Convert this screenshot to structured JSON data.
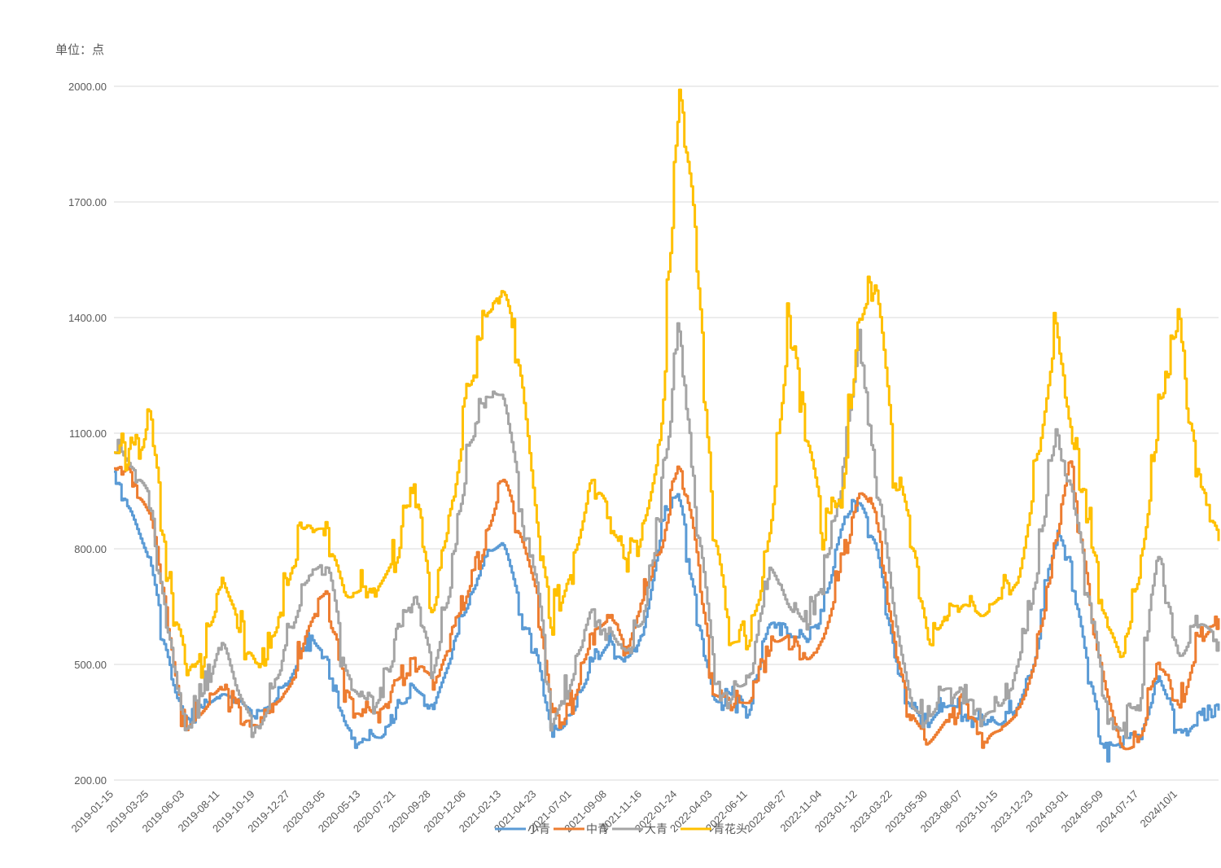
{
  "chart_data": {
    "type": "line",
    "unit_label": "单位：点",
    "ylim": [
      200,
      2100
    ],
    "y_ticks": [
      "200.00",
      "500.00",
      "800.00",
      "1100.00",
      "1400.00",
      "1700.00",
      "2000.00"
    ],
    "x_tick_labels": [
      "2019-01-15",
      "2019-03-25",
      "2019-06-03",
      "2019-08-11",
      "2019-10-19",
      "2019-12-27",
      "2020-03-05",
      "2020-05-13",
      "2020-07-21",
      "2020-09-28",
      "2020-12-06",
      "2021-02-13",
      "2021-04-23",
      "2021-07-01",
      "2021-09-08",
      "2021-11-16",
      "2022-01-24",
      "2022-04-03",
      "2022-06-11",
      "2022-08-27",
      "2022-11-04",
      "2023-01-12",
      "2023-03-22",
      "2023-05-30",
      "2023-08-07",
      "2023-10-15",
      "2023-12-23",
      "2024-03-01",
      "2024-05-09",
      "2024-07-17",
      "2024/10/1"
    ],
    "x_range": [
      "2019-01-15",
      "2024-12-20"
    ],
    "grid": "horizontal",
    "legend": "bottom",
    "colors": {
      "小青": "#5b9bd5",
      "中青": "#ed7d31",
      "大青": "#a5a5a5",
      "青花头": "#ffc000"
    },
    "series": [
      {
        "name": "小青",
        "color": "#5b9bd5",
        "points": [
          [
            "2019-01-15",
            1000
          ],
          [
            "2019-02-10",
            910
          ],
          [
            "2019-03-05",
            820
          ],
          [
            "2019-03-25",
            750
          ],
          [
            "2019-04-20",
            560
          ],
          [
            "2019-05-15",
            400
          ],
          [
            "2019-06-03",
            350
          ],
          [
            "2019-07-05",
            380
          ],
          [
            "2019-08-11",
            430
          ],
          [
            "2019-09-10",
            400
          ],
          [
            "2019-10-19",
            370
          ],
          [
            "2019-11-20",
            400
          ],
          [
            "2019-12-27",
            480
          ],
          [
            "2020-01-25",
            560
          ],
          [
            "2020-03-05",
            520
          ],
          [
            "2020-04-10",
            330
          ],
          [
            "2020-05-13",
            300
          ],
          [
            "2020-06-20",
            310
          ],
          [
            "2020-07-21",
            380
          ],
          [
            "2020-08-25",
            430
          ],
          [
            "2020-09-28",
            400
          ],
          [
            "2020-11-01",
            520
          ],
          [
            "2020-12-06",
            660
          ],
          [
            "2021-01-10",
            780
          ],
          [
            "2021-02-13",
            820
          ],
          [
            "2021-03-15",
            660
          ],
          [
            "2021-04-23",
            500
          ],
          [
            "2021-05-20",
            300
          ],
          [
            "2021-07-01",
            380
          ],
          [
            "2021-08-05",
            500
          ],
          [
            "2021-09-08",
            560
          ],
          [
            "2021-10-10",
            500
          ],
          [
            "2021-11-16",
            600
          ],
          [
            "2021-12-20",
            860
          ],
          [
            "2022-01-24",
            950
          ],
          [
            "2022-02-20",
            700
          ],
          [
            "2022-04-03",
            390
          ],
          [
            "2022-05-05",
            420
          ],
          [
            "2022-06-11",
            380
          ],
          [
            "2022-07-20",
            620
          ],
          [
            "2022-08-27",
            580
          ],
          [
            "2022-10-01",
            560
          ],
          [
            "2022-11-04",
            640
          ],
          [
            "2022-12-10",
            880
          ],
          [
            "2023-01-12",
            930
          ],
          [
            "2023-02-15",
            800
          ],
          [
            "2023-03-22",
            520
          ],
          [
            "2023-04-25",
            380
          ],
          [
            "2023-05-30",
            360
          ],
          [
            "2023-07-01",
            400
          ],
          [
            "2023-08-07",
            380
          ],
          [
            "2023-09-10",
            350
          ],
          [
            "2023-10-15",
            340
          ],
          [
            "2023-11-20",
            400
          ],
          [
            "2023-12-23",
            520
          ],
          [
            "2024-02-01",
            830
          ],
          [
            "2024-03-01",
            780
          ],
          [
            "2024-04-01",
            500
          ],
          [
            "2024-05-09",
            270
          ],
          [
            "2024-06-10",
            300
          ],
          [
            "2024-07-17",
            320
          ],
          [
            "2024-08-20",
            460
          ],
          [
            "2024/10/1",
            330
          ],
          [
            "2024-11-05",
            350
          ],
          [
            "2024-12-20",
            380
          ]
        ]
      },
      {
        "name": "中青",
        "color": "#ed7d31",
        "points": [
          [
            "2019-01-15",
            1020
          ],
          [
            "2019-02-10",
            1010
          ],
          [
            "2019-03-05",
            930
          ],
          [
            "2019-03-25",
            880
          ],
          [
            "2019-04-20",
            680
          ],
          [
            "2019-05-15",
            420
          ],
          [
            "2019-06-03",
            340
          ],
          [
            "2019-07-05",
            380
          ],
          [
            "2019-08-11",
            450
          ],
          [
            "2019-09-10",
            380
          ],
          [
            "2019-10-19",
            340
          ],
          [
            "2019-11-20",
            380
          ],
          [
            "2019-12-27",
            460
          ],
          [
            "2020-01-25",
            600
          ],
          [
            "2020-03-05",
            700
          ],
          [
            "2020-04-10",
            440
          ],
          [
            "2020-05-13",
            360
          ],
          [
            "2020-06-20",
            380
          ],
          [
            "2020-07-21",
            460
          ],
          [
            "2020-08-25",
            520
          ],
          [
            "2020-09-28",
            460
          ],
          [
            "2020-11-01",
            560
          ],
          [
            "2020-12-06",
            700
          ],
          [
            "2021-01-10",
            820
          ],
          [
            "2021-02-13",
            1000
          ],
          [
            "2021-03-15",
            850
          ],
          [
            "2021-04-23",
            660
          ],
          [
            "2021-05-20",
            340
          ],
          [
            "2021-07-01",
            400
          ],
          [
            "2021-08-05",
            580
          ],
          [
            "2021-09-08",
            620
          ],
          [
            "2021-10-10",
            540
          ],
          [
            "2021-11-16",
            680
          ],
          [
            "2021-12-20",
            800
          ],
          [
            "2022-01-24",
            1040
          ],
          [
            "2022-02-20",
            850
          ],
          [
            "2022-04-03",
            420
          ],
          [
            "2022-05-05",
            400
          ],
          [
            "2022-06-11",
            400
          ],
          [
            "2022-07-20",
            540
          ],
          [
            "2022-08-27",
            580
          ],
          [
            "2022-10-01",
            500
          ],
          [
            "2022-11-04",
            580
          ],
          [
            "2022-12-10",
            760
          ],
          [
            "2023-01-12",
            960
          ],
          [
            "2023-02-15",
            880
          ],
          [
            "2023-03-22",
            540
          ],
          [
            "2023-04-25",
            360
          ],
          [
            "2023-05-30",
            300
          ],
          [
            "2023-07-01",
            360
          ],
          [
            "2023-08-07",
            400
          ],
          [
            "2023-09-10",
            320
          ],
          [
            "2023-10-15",
            330
          ],
          [
            "2023-11-20",
            380
          ],
          [
            "2023-12-23",
            520
          ],
          [
            "2024-02-01",
            800
          ],
          [
            "2024-03-01",
            1070
          ],
          [
            "2024-04-01",
            720
          ],
          [
            "2024-05-09",
            420
          ],
          [
            "2024-06-10",
            270
          ],
          [
            "2024-07-17",
            300
          ],
          [
            "2024-08-20",
            520
          ],
          [
            "2024/10/1",
            380
          ],
          [
            "2024-11-05",
            560
          ],
          [
            "2024-12-20",
            620
          ]
        ]
      },
      {
        "name": "大青",
        "color": "#a5a5a5",
        "points": [
          [
            "2019-01-15",
            1050
          ],
          [
            "2019-02-10",
            1020
          ],
          [
            "2019-03-05",
            980
          ],
          [
            "2019-03-25",
            930
          ],
          [
            "2019-04-20",
            640
          ],
          [
            "2019-05-15",
            460
          ],
          [
            "2019-06-03",
            330
          ],
          [
            "2019-07-05",
            420
          ],
          [
            "2019-08-11",
            580
          ],
          [
            "2019-09-10",
            420
          ],
          [
            "2019-10-19",
            330
          ],
          [
            "2019-11-20",
            420
          ],
          [
            "2019-12-27",
            600
          ],
          [
            "2020-01-25",
            720
          ],
          [
            "2020-03-05",
            780
          ],
          [
            "2020-04-10",
            470
          ],
          [
            "2020-05-13",
            400
          ],
          [
            "2020-06-20",
            420
          ],
          [
            "2020-07-21",
            560
          ],
          [
            "2020-08-25",
            700
          ],
          [
            "2020-09-28",
            480
          ],
          [
            "2020-11-01",
            700
          ],
          [
            "2020-12-06",
            1050
          ],
          [
            "2021-01-10",
            1190
          ],
          [
            "2021-02-13",
            1200
          ],
          [
            "2021-03-15",
            960
          ],
          [
            "2021-04-23",
            680
          ],
          [
            "2021-05-20",
            360
          ],
          [
            "2021-07-01",
            480
          ],
          [
            "2021-08-05",
            660
          ],
          [
            "2021-09-08",
            580
          ],
          [
            "2021-10-10",
            520
          ],
          [
            "2021-11-16",
            620
          ],
          [
            "2021-12-20",
            900
          ],
          [
            "2022-01-24",
            1380
          ],
          [
            "2022-02-20",
            1000
          ],
          [
            "2022-04-03",
            460
          ],
          [
            "2022-05-05",
            420
          ],
          [
            "2022-06-11",
            460
          ],
          [
            "2022-07-20",
            760
          ],
          [
            "2022-08-27",
            640
          ],
          [
            "2022-10-01",
            600
          ],
          [
            "2022-11-04",
            720
          ],
          [
            "2022-12-10",
            980
          ],
          [
            "2023-01-12",
            1380
          ],
          [
            "2023-02-15",
            1000
          ],
          [
            "2023-03-22",
            600
          ],
          [
            "2023-04-25",
            380
          ],
          [
            "2023-05-30",
            360
          ],
          [
            "2023-07-01",
            440
          ],
          [
            "2023-08-07",
            430
          ],
          [
            "2023-09-10",
            380
          ],
          [
            "2023-10-15",
            380
          ],
          [
            "2023-11-20",
            520
          ],
          [
            "2023-12-23",
            700
          ],
          [
            "2024-02-01",
            1100
          ],
          [
            "2024-03-01",
            980
          ],
          [
            "2024-04-01",
            720
          ],
          [
            "2024-05-09",
            400
          ],
          [
            "2024-06-10",
            320
          ],
          [
            "2024-07-17",
            420
          ],
          [
            "2024-08-20",
            820
          ],
          [
            "2024/10/1",
            500
          ],
          [
            "2024-11-05",
            620
          ],
          [
            "2024-12-20",
            560
          ]
        ]
      },
      {
        "name": "青花头",
        "color": "#ffc000",
        "points": [
          [
            "2019-01-15",
            1050
          ],
          [
            "2019-02-10",
            1040
          ],
          [
            "2019-03-05",
            1080
          ],
          [
            "2019-03-25",
            1150
          ],
          [
            "2019-04-20",
            820
          ],
          [
            "2019-05-15",
            620
          ],
          [
            "2019-06-03",
            500
          ],
          [
            "2019-07-05",
            520
          ],
          [
            "2019-08-11",
            710
          ],
          [
            "2019-09-10",
            620
          ],
          [
            "2019-10-19",
            490
          ],
          [
            "2019-11-20",
            560
          ],
          [
            "2019-12-27",
            760
          ],
          [
            "2020-01-25",
            860
          ],
          [
            "2020-03-05",
            850
          ],
          [
            "2020-04-10",
            660
          ],
          [
            "2020-05-13",
            700
          ],
          [
            "2020-06-20",
            720
          ],
          [
            "2020-07-21",
            800
          ],
          [
            "2020-08-25",
            1000
          ],
          [
            "2020-09-28",
            620
          ],
          [
            "2020-11-01",
            900
          ],
          [
            "2020-12-06",
            1190
          ],
          [
            "2021-01-10",
            1390
          ],
          [
            "2021-02-13",
            1490
          ],
          [
            "2021-03-15",
            1300
          ],
          [
            "2021-04-23",
            800
          ],
          [
            "2021-05-20",
            620
          ],
          [
            "2021-07-01",
            760
          ],
          [
            "2021-08-05",
            1000
          ],
          [
            "2021-09-08",
            900
          ],
          [
            "2021-10-10",
            760
          ],
          [
            "2021-11-16",
            860
          ],
          [
            "2021-12-20",
            1100
          ],
          [
            "2022-01-24",
            2000
          ],
          [
            "2022-02-20",
            1690
          ],
          [
            "2022-04-03",
            850
          ],
          [
            "2022-05-05",
            560
          ],
          [
            "2022-06-11",
            560
          ],
          [
            "2022-07-20",
            820
          ],
          [
            "2022-08-27",
            1400
          ],
          [
            "2022-10-01",
            1100
          ],
          [
            "2022-11-04",
            850
          ],
          [
            "2022-12-10",
            950
          ],
          [
            "2023-01-12",
            1400
          ],
          [
            "2023-02-15",
            1500
          ],
          [
            "2023-03-22",
            1000
          ],
          [
            "2023-04-25",
            850
          ],
          [
            "2023-05-30",
            520
          ],
          [
            "2023-07-01",
            640
          ],
          [
            "2023-08-07",
            660
          ],
          [
            "2023-09-10",
            620
          ],
          [
            "2023-10-15",
            680
          ],
          [
            "2023-11-20",
            720
          ],
          [
            "2023-12-23",
            1000
          ],
          [
            "2024-02-01",
            1380
          ],
          [
            "2024-03-01",
            1100
          ],
          [
            "2024-04-01",
            950
          ],
          [
            "2024-05-09",
            620
          ],
          [
            "2024-06-10",
            500
          ],
          [
            "2024-07-17",
            750
          ],
          [
            "2024-08-20",
            1130
          ],
          [
            "2024/10/1",
            1400
          ],
          [
            "2024-11-05",
            1000
          ],
          [
            "2024-12-20",
            820
          ]
        ]
      }
    ]
  }
}
